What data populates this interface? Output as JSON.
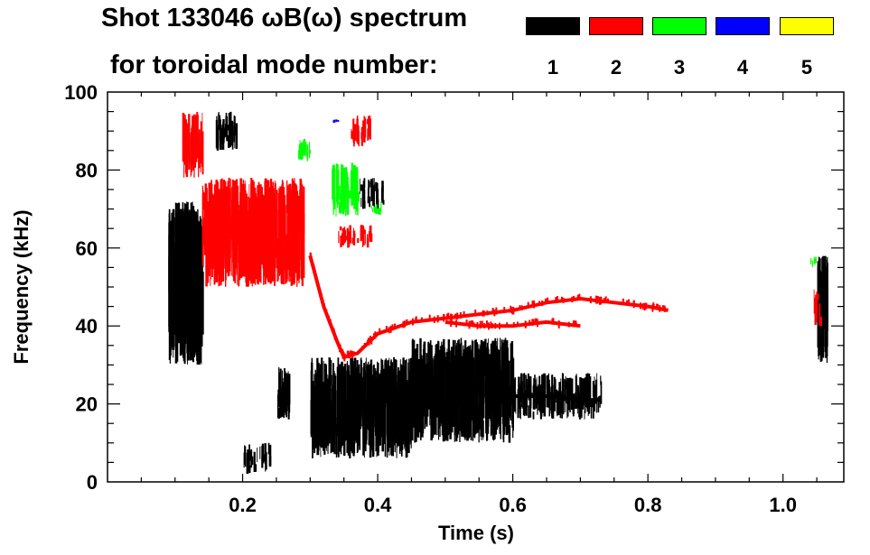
{
  "chart_data": {
    "type": "heatmap",
    "title": "Shot 133046 ωB(ω) spectrum",
    "legend_title": "for toroidal mode number:",
    "xlabel": "Time (s)",
    "ylabel": "Frequency (kHz)",
    "xlim": [
      0.0,
      1.09
    ],
    "ylim": [
      0,
      100
    ],
    "x_ticks": [
      {
        "value": 0.2,
        "label": "0.2"
      },
      {
        "value": 0.4,
        "label": "0.4"
      },
      {
        "value": 0.6,
        "label": "0.6"
      },
      {
        "value": 0.8,
        "label": "0.8"
      },
      {
        "value": 1.0,
        "label": "1.0"
      }
    ],
    "y_ticks": [
      {
        "value": 0,
        "label": "0"
      },
      {
        "value": 20,
        "label": "20"
      },
      {
        "value": 40,
        "label": "40"
      },
      {
        "value": 60,
        "label": "60"
      },
      {
        "value": 80,
        "label": "80"
      },
      {
        "value": 100,
        "label": "100"
      }
    ],
    "legend": {
      "placement": "top-right",
      "entries": [
        {
          "label": "1",
          "color": "#000000"
        },
        {
          "label": "2",
          "color": "#ff0000"
        },
        {
          "label": "3",
          "color": "#00ff00"
        },
        {
          "label": "4",
          "color": "#0000ff"
        },
        {
          "label": "5",
          "color": "#ffff00"
        }
      ]
    },
    "series": [
      {
        "mode": 1,
        "color": "#000000",
        "regions": [
          {
            "t": [
              0.09,
              0.14
            ],
            "f": [
              30,
              70
            ]
          },
          {
            "t": [
              0.1,
              0.13
            ],
            "f": [
              58,
              72
            ]
          },
          {
            "t": [
              0.16,
              0.19
            ],
            "f": [
              85,
              95
            ]
          },
          {
            "t": [
              0.2,
              0.24
            ],
            "f": [
              2,
              10
            ]
          },
          {
            "t": [
              0.25,
              0.27
            ],
            "f": [
              16,
              30
            ]
          },
          {
            "t": [
              0.3,
              0.45
            ],
            "f": [
              6,
              32
            ]
          },
          {
            "t": [
              0.37,
              0.41
            ],
            "f": [
              70,
              78
            ]
          },
          {
            "t": [
              0.45,
              0.6
            ],
            "f": [
              10,
              37
            ]
          },
          {
            "t": [
              0.6,
              0.73
            ],
            "f": [
              16,
              28
            ]
          },
          {
            "t": [
              1.05,
              1.065
            ],
            "f": [
              30,
              58
            ]
          }
        ],
        "tracks": [
          {
            "t": [
              0.6,
              0.65,
              0.7,
              0.73
            ],
            "f": [
              22,
              22,
              21,
              21
            ]
          }
        ]
      },
      {
        "mode": 2,
        "color": "#ff0000",
        "regions": [
          {
            "t": [
              0.11,
              0.14
            ],
            "f": [
              78,
              95
            ]
          },
          {
            "t": [
              0.14,
              0.29
            ],
            "f": [
              50,
              78
            ]
          },
          {
            "t": [
              0.36,
              0.39
            ],
            "f": [
              86,
              94
            ]
          },
          {
            "t": [
              0.34,
              0.39
            ],
            "f": [
              60,
              66
            ]
          },
          {
            "t": [
              1.045,
              1.055
            ],
            "f": [
              40,
              50
            ]
          }
        ],
        "tracks": [
          {
            "t": [
              0.3,
              0.32,
              0.34,
              0.35,
              0.37,
              0.4,
              0.45,
              0.5,
              0.55,
              0.6,
              0.65,
              0.7,
              0.75,
              0.8,
              0.83
            ],
            "f": [
              58,
              45,
              36,
              32,
              33,
              38,
              41,
              42,
              43,
              44,
              46,
              47,
              46,
              45,
              44
            ]
          },
          {
            "t": [
              0.5,
              0.55,
              0.6,
              0.65,
              0.7
            ],
            "f": [
              41,
              40,
              40,
              41,
              40
            ]
          }
        ]
      },
      {
        "mode": 3,
        "color": "#00ff00",
        "regions": [
          {
            "t": [
              0.28,
              0.3
            ],
            "f": [
              82,
              88
            ]
          },
          {
            "t": [
              0.33,
              0.37
            ],
            "f": [
              68,
              82
            ]
          },
          {
            "t": [
              0.39,
              0.41
            ],
            "f": [
              68,
              72
            ]
          },
          {
            "t": [
              1.04,
              1.05
            ],
            "f": [
              55,
              58
            ]
          }
        ],
        "tracks": []
      },
      {
        "mode": 4,
        "color": "#0000ff",
        "regions": [
          {
            "t": [
              0.33,
              0.34
            ],
            "f": [
              92,
              93
            ]
          }
        ],
        "tracks": []
      },
      {
        "mode": 5,
        "color": "#ffff00",
        "regions": [],
        "tracks": []
      }
    ]
  }
}
